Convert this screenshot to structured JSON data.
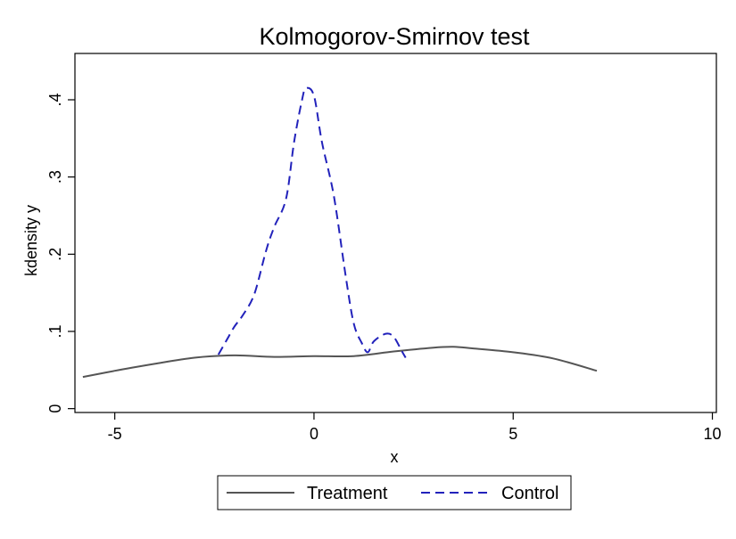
{
  "chart_data": {
    "type": "line",
    "title": "Kolmogorov-Smirnov test",
    "xlabel": "x",
    "ylabel": "kdensity y",
    "xlim": [
      -6,
      10.1
    ],
    "ylim": [
      -0.005,
      0.46
    ],
    "xticks": [
      -5,
      0,
      5,
      10
    ],
    "xtick_labels": [
      "-5",
      "0",
      "5",
      "10"
    ],
    "yticks": [
      0,
      0.1,
      0.2,
      0.3,
      0.4
    ],
    "ytick_labels": [
      "0",
      ".1",
      ".2",
      ".3",
      ".4"
    ],
    "grid": false,
    "legend_position": "bottom",
    "series": [
      {
        "name": "Treatment",
        "color": "#555555",
        "dash": "solid",
        "x": [
          -5.8,
          -5.0,
          -4.0,
          -3.0,
          -2.0,
          -1.0,
          0.0,
          1.0,
          2.0,
          3.0,
          3.5,
          4.0,
          5.0,
          6.0,
          7.1
        ],
        "y": [
          0.041,
          0.049,
          0.058,
          0.066,
          0.069,
          0.067,
          0.068,
          0.068,
          0.074,
          0.079,
          0.08,
          0.078,
          0.073,
          0.065,
          0.049
        ]
      },
      {
        "name": "Control",
        "color": "#2222bb",
        "dash": "dashed",
        "x": [
          -2.4,
          -2.2,
          -2.0,
          -1.8,
          -1.5,
          -1.2,
          -1.0,
          -0.7,
          -0.5,
          -0.3,
          -0.2,
          0.0,
          0.2,
          0.5,
          0.8,
          1.0,
          1.2,
          1.35,
          1.5,
          1.8,
          2.0,
          2.2,
          2.3
        ],
        "y": [
          0.07,
          0.088,
          0.106,
          0.12,
          0.148,
          0.205,
          0.235,
          0.272,
          0.345,
          0.4,
          0.415,
          0.405,
          0.345,
          0.275,
          0.17,
          0.11,
          0.085,
          0.073,
          0.087,
          0.097,
          0.093,
          0.075,
          0.066
        ]
      }
    ]
  }
}
